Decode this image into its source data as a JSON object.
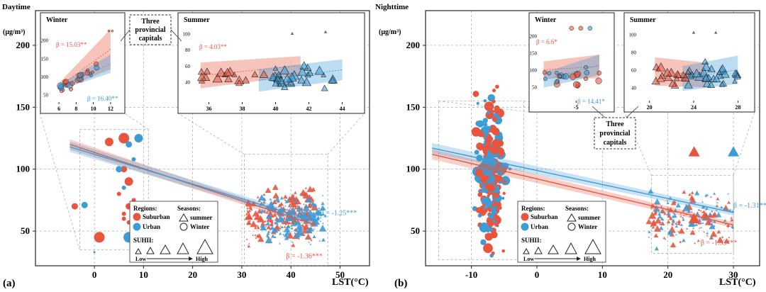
{
  "chart_data": [
    {
      "panel_label": "(a)",
      "title": "Daytime",
      "type": "scatter",
      "ylabel": "(μg/m³)",
      "xlabel": "LST(°C)",
      "xlim": [
        -12,
        56
      ],
      "ylim": [
        22,
        228
      ],
      "xticks": [
        "0",
        "10",
        "20",
        "30",
        "40",
        "50"
      ],
      "xtick_values": [
        0,
        10,
        20,
        30,
        40,
        50
      ],
      "yticks": [
        "50",
        "100",
        "150",
        "200"
      ],
      "ytick_values": [
        50,
        100,
        150,
        200
      ],
      "fits": [
        {
          "region": "Suburban",
          "color": "#e8553e",
          "x": [
            -5,
            45
          ],
          "y": [
            120,
            55
          ],
          "label": "β = -1.36***",
          "label_at": [
            39,
            28
          ]
        },
        {
          "region": "Urban",
          "color": "#3d9bd6",
          "x": [
            -5,
            45
          ],
          "y": [
            118,
            58
          ],
          "label": "β = -1.25***",
          "label_at": [
            46,
            63
          ]
        }
      ],
      "points": {
        "suburban_winter": [
          [
            -4,
            70,
            3
          ],
          [
            1,
            45,
            5
          ],
          [
            3,
            122,
            4
          ],
          [
            6,
            125,
            5
          ],
          [
            6,
            100,
            3
          ],
          [
            7,
            90,
            4
          ],
          [
            5,
            80,
            2
          ],
          [
            7,
            70,
            3
          ],
          [
            6,
            60,
            2
          ],
          [
            8,
            75,
            2
          ],
          [
            -2,
            70,
            1
          ],
          [
            6,
            64,
            2
          ],
          [
            7,
            57,
            2
          ]
        ],
        "urban_winter": [
          [
            7,
            45,
            5
          ],
          [
            9,
            125,
            4
          ],
          [
            7,
            120,
            3
          ],
          [
            5,
            100,
            3
          ],
          [
            8,
            108,
            2
          ],
          [
            -2,
            71,
            3
          ],
          [
            8,
            55,
            2
          ],
          [
            6,
            85,
            2
          ],
          [
            0,
            33,
            1
          ]
        ],
        "suburban_summer": {
          "x_range": [
            31,
            45
          ],
          "y_range": [
            24,
            112
          ],
          "count": 230
        },
        "urban_summer": {
          "x_range": [
            34,
            47
          ],
          "y_range": [
            30,
            112
          ],
          "count": 190
        }
      },
      "inset_winter": {
        "title": "Winter",
        "xlim": [
          5,
          13
        ],
        "ylim": [
          30,
          240
        ],
        "xticks": [
          "6",
          "8",
          "10",
          "12"
        ],
        "yticks": [
          "50",
          "100",
          "150",
          "200"
        ],
        "suburban_beta": "β = 15.03**",
        "urban_beta": "β = 16.40**"
      },
      "inset_summer": {
        "title": "Summer",
        "xlim": [
          35,
          45
        ],
        "ylim": [
          15,
          110
        ],
        "xticks": [
          "36",
          "38",
          "40",
          "42",
          "44"
        ],
        "yticks": [
          "40",
          "60",
          "80",
          "100"
        ],
        "suburban_beta": "β = 4.03**"
      },
      "callout": [
        "Three",
        "provincial",
        "capitals"
      ]
    },
    {
      "panel_label": "(b)",
      "title": "Nighttime",
      "type": "scatter",
      "ylabel": "(μg/m³)",
      "xlabel": "LST(°C)",
      "xlim": [
        -17,
        34
      ],
      "ylim": [
        22,
        228
      ],
      "xticks": [
        "-10",
        "0",
        "10",
        "20",
        "30"
      ],
      "xtick_values": [
        -10,
        0,
        10,
        20,
        30
      ],
      "yticks": [
        "50",
        "100",
        "150",
        "200"
      ],
      "ytick_values": [
        50,
        100,
        150,
        200
      ],
      "fits": [
        {
          "region": "Suburban",
          "color": "#e8553e",
          "x": [
            -16,
            30
          ],
          "y": [
            112,
            55
          ],
          "label": "β = -1.33***",
          "label_at": [
            25,
            39
          ]
        },
        {
          "region": "Urban",
          "color": "#3d9bd6",
          "x": [
            -16,
            30
          ],
          "y": [
            117,
            65
          ],
          "label": "β = -1.31***",
          "label_at": [
            30,
            69
          ]
        }
      ],
      "points": {
        "winter_cloud": {
          "x_range": [
            -13,
            -2
          ],
          "y_range": [
            30,
            225
          ],
          "count": 260
        },
        "summer_cloud": {
          "x_range": [
            17,
            30
          ],
          "y_range": [
            22,
            95
          ],
          "count": 200
        },
        "large_triangles": [
          [
            24,
            114,
            "suburban"
          ],
          [
            30,
            114,
            "urban"
          ],
          [
            24,
            60,
            "suburban"
          ]
        ]
      },
      "inset_winter": {
        "title": "Winter",
        "xlim": [
          -13,
          2
        ],
        "ylim": [
          10,
          230
        ],
        "xticks": [
          "-5"
        ],
        "yticks": [
          "50",
          "100",
          "150",
          "200"
        ],
        "suburban_beta": "β = 6.6*",
        "urban_beta": "β = 14.41*"
      },
      "inset_summer": {
        "title": "Summer",
        "xlim": [
          19,
          29
        ],
        "ylim": [
          25,
          110
        ],
        "xticks": [
          "20",
          "24",
          "28"
        ],
        "yticks": [
          "40",
          "60",
          "80",
          "100"
        ]
      },
      "callout": [
        "Three",
        "provincial",
        "capitals"
      ]
    }
  ],
  "legend": {
    "regions_title": "Regions:",
    "seasons_title": "Seasons:",
    "suburban": "Suburban",
    "urban": "Urban",
    "summer": "summer",
    "winter": "Winter",
    "suhii_title": "SUHII:",
    "low": "Low",
    "high": "High"
  },
  "colors": {
    "suburban": "#e8553e",
    "urban": "#3d9bd6",
    "grid": "#9a9a9a"
  }
}
